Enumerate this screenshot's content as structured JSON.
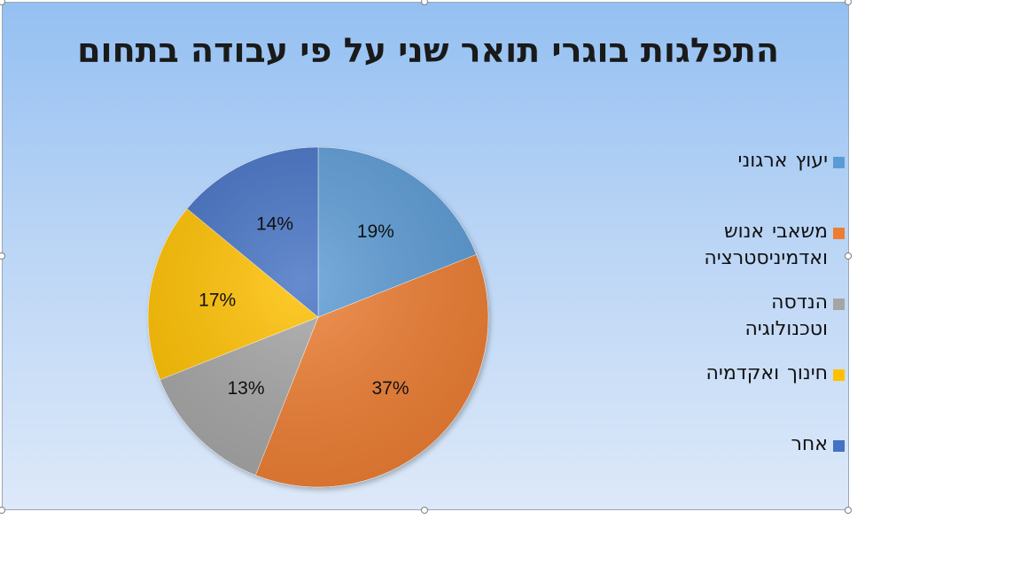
{
  "chart_data": {
    "type": "pie",
    "title": "התפלגות בוגרי תואר שני על פי עבודה בתחום",
    "categories": [
      "יעוץ ארגוני",
      "משאבי אנוש ואדמיניסטרציה",
      "הנדסה וטכנולוגיה",
      "חינוך ואקדמיה",
      "אחר"
    ],
    "values": [
      19,
      37,
      13,
      17,
      14
    ],
    "data_labels": [
      "19%",
      "37%",
      "13%",
      "17%",
      "14%"
    ],
    "colors": [
      "#5b9bd5",
      "#ed7d31",
      "#a5a5a5",
      "#ffc000",
      "#4472c4"
    ],
    "legend_position": "right"
  }
}
